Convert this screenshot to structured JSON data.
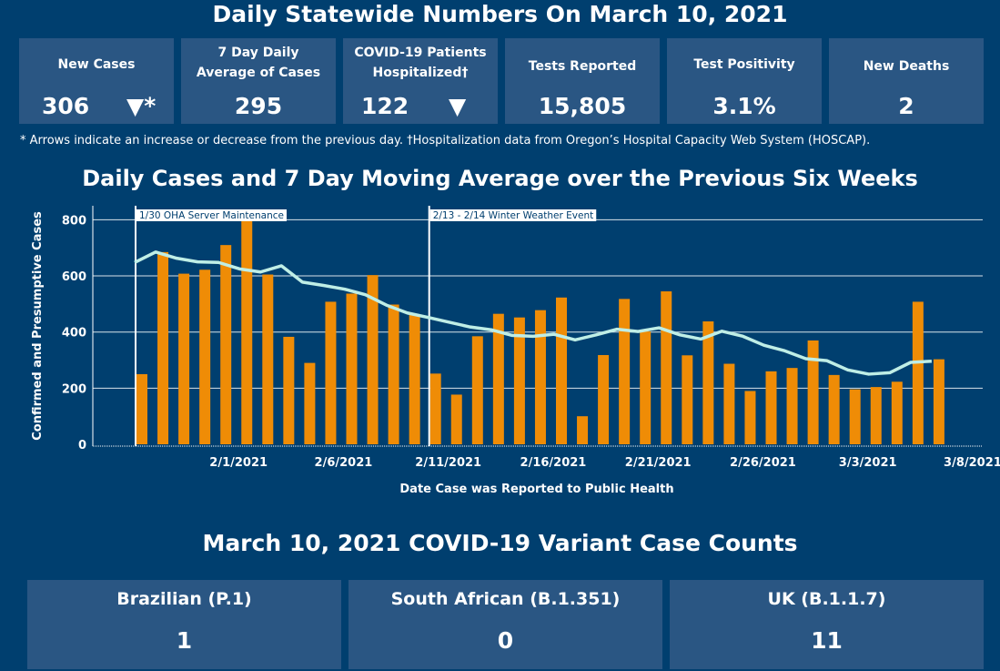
{
  "header": {
    "title": "Daily Statewide Numbers On March 10, 2021"
  },
  "kpis": [
    {
      "label": "New Cases",
      "value": "306",
      "arrow": "▼*"
    },
    {
      "label": "7 Day Daily Average of Cases",
      "value": "295"
    },
    {
      "label": "COVID-19 Patients Hospitalized†",
      "value": "122",
      "arrow": "▼"
    },
    {
      "label": "Tests Reported",
      "value": "15,805"
    },
    {
      "label": "Test Positivity",
      "value": "3.1%"
    },
    {
      "label": "New Deaths",
      "value": "2"
    }
  ],
  "footnote": "* Arrows indicate an increase or decrease from the previous day. †Hospitalization data from Oregon’s Hospital Capacity Web System (HOSCAP).",
  "chart_data": {
    "type": "bar",
    "title": "Daily Cases and 7 Day Moving Average over the Previous Six Weeks",
    "xlabel": "Date Case was Reported to Public Health",
    "ylabel": "Confirmed and Presumptive Cases",
    "ylim": [
      0,
      850
    ],
    "yticks": [
      0,
      200,
      400,
      600,
      800
    ],
    "start_date": "1/28/2021",
    "x_ticks": [
      {
        "day_index": 4,
        "label": "2/1/2021"
      },
      {
        "day_index": 9,
        "label": "2/6/2021"
      },
      {
        "day_index": 14,
        "label": "2/11/2021"
      },
      {
        "day_index": 19,
        "label": "2/16/2021"
      },
      {
        "day_index": 24,
        "label": "2/21/2021"
      },
      {
        "day_index": 29,
        "label": "2/26/2021"
      },
      {
        "day_index": 34,
        "label": "3/3/2021"
      },
      {
        "day_index": 39,
        "label": "3/8/2021"
      }
    ],
    "series": [
      {
        "name": "Daily Cases",
        "type": "bar",
        "color": "#ef8c06",
        "values": [
          250,
          685,
          608,
          622,
          710,
          805,
          605,
          383,
          290,
          508,
          537,
          603,
          498,
          462,
          252,
          177,
          385,
          465,
          452,
          478,
          523,
          100,
          318,
          518,
          402,
          545,
          317,
          438,
          287,
          190,
          260,
          272,
          370,
          247,
          196,
          204,
          223,
          508,
          303
        ]
      },
      {
        "name": "7 Day Moving Average",
        "type": "line",
        "color": "#bfeee6",
        "values": [
          648,
          685,
          663,
          650,
          648,
          625,
          614,
          636,
          578,
          566,
          553,
          533,
          496,
          468,
          452,
          435,
          418,
          408,
          388,
          385,
          392,
          372,
          390,
          410,
          402,
          415,
          390,
          375,
          403,
          385,
          353,
          333,
          305,
          298,
          265,
          250,
          255,
          292,
          296
        ]
      }
    ],
    "annotations": [
      {
        "day_index": 0,
        "label": "1/30 OHA Server Maintenance"
      },
      {
        "day_index": 14,
        "label": "2/13 - 2/14 Winter Weather Event"
      }
    ]
  },
  "variants": {
    "title": "March 10, 2021 COVID-19 Variant Case Counts",
    "items": [
      {
        "label": "Brazilian (P.1)",
        "value": "1"
      },
      {
        "label": "South African (B.1.351)",
        "value": "0"
      },
      {
        "label": "UK (B.1.1.7)",
        "value": "11"
      }
    ]
  }
}
